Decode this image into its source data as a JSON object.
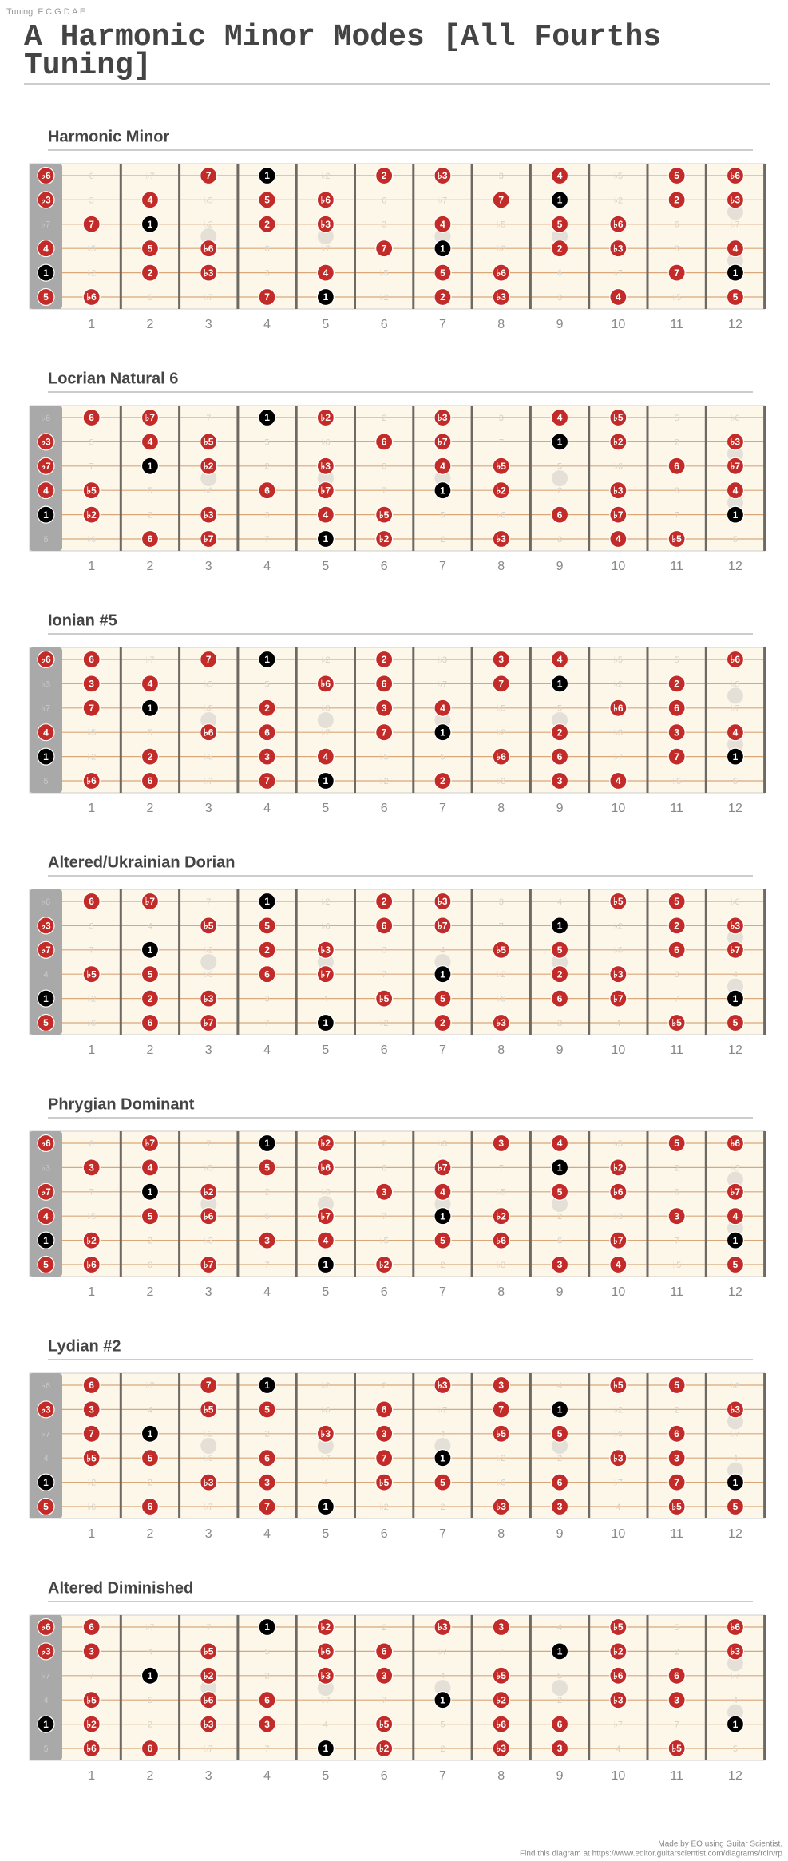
{
  "tuning": "Tuning: F C G D A E",
  "title": "A Harmonic Minor Modes [All Fourths Tuning]",
  "intervals": [
    "1",
    "♭2",
    "2",
    "♭3",
    "3",
    "4",
    "♭5",
    "5",
    "♭6",
    "6",
    "♭7",
    "7"
  ],
  "strings": [
    "♭6",
    "♭3",
    "♭7",
    "4",
    "1",
    "5"
  ],
  "frets": [
    1,
    2,
    3,
    4,
    5,
    6,
    7,
    8,
    9,
    10,
    11,
    12
  ],
  "root": "1",
  "scale_color": "#c22b27",
  "root_color": "#000000",
  "diagrams": [
    {
      "name": "Harmonic Minor",
      "scale": [
        "1",
        "2",
        "♭3",
        "4",
        "5",
        "♭6",
        "7"
      ]
    },
    {
      "name": "Locrian Natural 6",
      "scale": [
        "1",
        "♭2",
        "♭3",
        "4",
        "♭5",
        "6",
        "♭7"
      ]
    },
    {
      "name": "Ionian #5",
      "scale": [
        "1",
        "2",
        "3",
        "4",
        "♭6",
        "6",
        "7"
      ]
    },
    {
      "name": "Altered/Ukrainian Dorian",
      "scale": [
        "1",
        "2",
        "♭3",
        "♭5",
        "5",
        "6",
        "♭7"
      ]
    },
    {
      "name": "Phrygian Dominant",
      "scale": [
        "1",
        "♭2",
        "3",
        "4",
        "5",
        "♭6",
        "♭7"
      ]
    },
    {
      "name": "Lydian #2",
      "scale": [
        "1",
        "♭3",
        "3",
        "♭5",
        "5",
        "6",
        "7"
      ]
    },
    {
      "name": "Altered Diminished",
      "scale": [
        "1",
        "♭2",
        "♭3",
        "3",
        "♭5",
        "♭6",
        "6"
      ]
    }
  ],
  "footer": [
    "Made by EO using Guitar Scientist.",
    "Find this diagram at https://www.editor.guitarscientist.com/diagrams/rcirvrp"
  ]
}
